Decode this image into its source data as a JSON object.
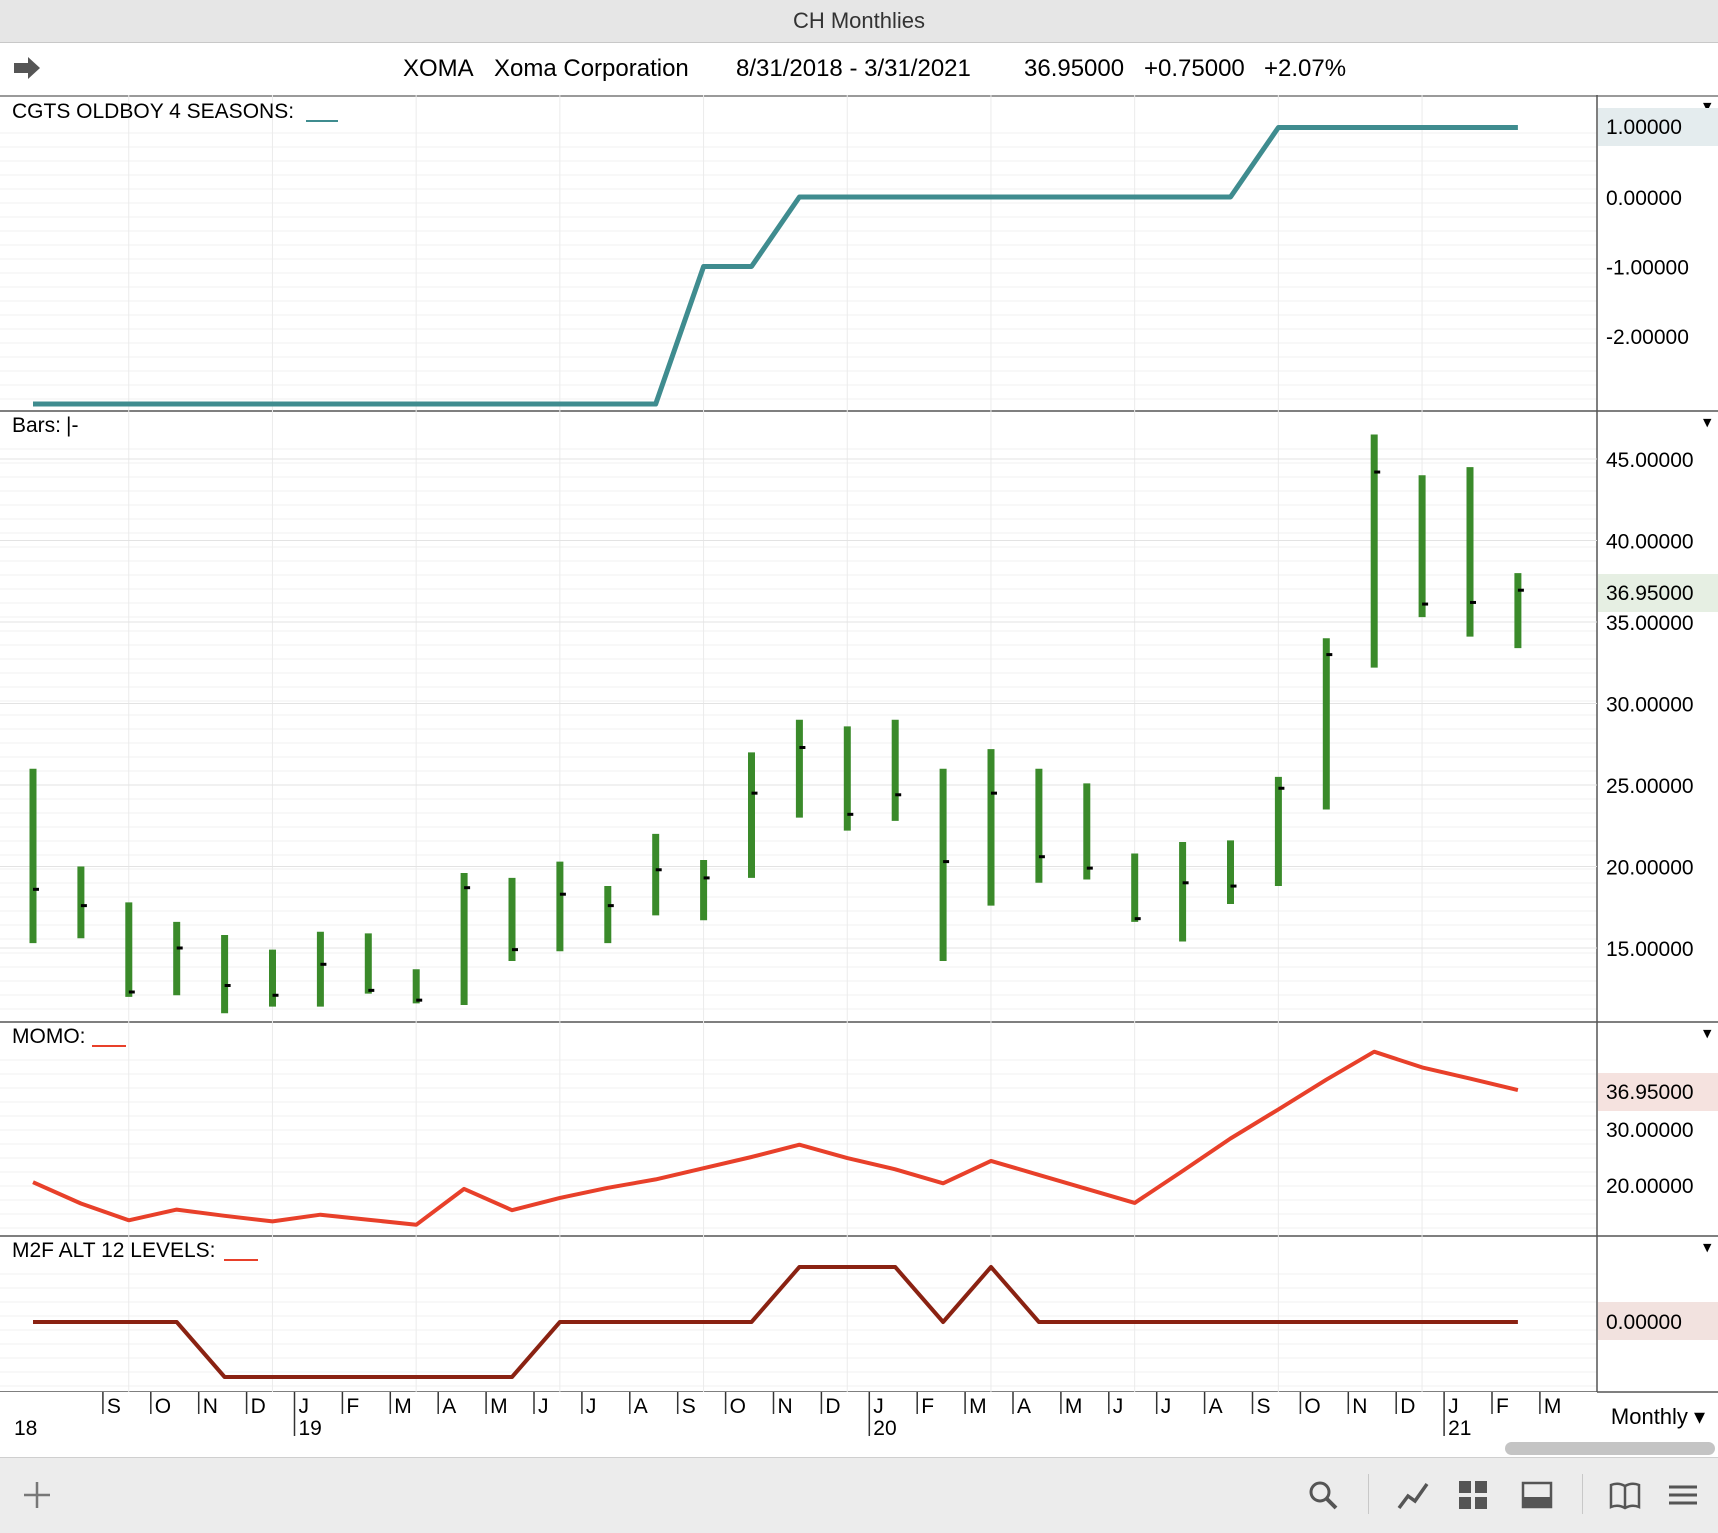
{
  "window_title": "CH Monthlies",
  "header": {
    "symbol": "XOMA",
    "company": "Xoma Corporation",
    "date_range": "8/31/2018 - 3/31/2021",
    "last": "36.95000",
    "change": "+0.75000",
    "change_pct": "+2.07%"
  },
  "panels": {
    "seasons": {
      "label": "CGTS OLDBOY 4 SEASONS:",
      "line_color": "#3f8c8f",
      "price_tag": "1.00000",
      "tag_color": "#3f8c8f"
    },
    "bars": {
      "label": "Bars:",
      "bar_color": "#3a8a2a",
      "price_tag": "36.95000",
      "tag_color": "#2f6b22"
    },
    "momo": {
      "label": "MOMO:",
      "line_color": "#e8402a",
      "price_tag": "36.95000",
      "tag_color": "#c0392b"
    },
    "m2f": {
      "label": "M2F ALT 12 LEVELS:",
      "line_color": "#8a2212",
      "price_tag": "0.00000",
      "tag_color": "#8a2212"
    }
  },
  "timeframe": "Monthly",
  "footer_icons": [
    "plus-icon",
    "search-icon",
    "line-chart-icon",
    "grid-icon",
    "panel-icon",
    "book-icon",
    "menu-icon"
  ],
  "chart_data": {
    "type": "line",
    "x": [
      "2018-08",
      "2018-09",
      "2018-10",
      "2018-11",
      "2018-12",
      "2019-01",
      "2019-02",
      "2019-03",
      "2019-04",
      "2019-05",
      "2019-06",
      "2019-07",
      "2019-08",
      "2019-09",
      "2019-10",
      "2019-11",
      "2019-12",
      "2020-01",
      "2020-02",
      "2020-03",
      "2020-04",
      "2020-05",
      "2020-06",
      "2020-07",
      "2020-08",
      "2020-09",
      "2020-10",
      "2020-11",
      "2020-12",
      "2021-01",
      "2021-02",
      "2021-03"
    ],
    "month_letters": [
      "",
      "S",
      "O",
      "N",
      "D",
      "J",
      "F",
      "M",
      "A",
      "M",
      "J",
      "J",
      "A",
      "S",
      "O",
      "N",
      "D",
      "J",
      "F",
      "M",
      "A",
      "M",
      "J",
      "J",
      "A",
      "S",
      "O",
      "N",
      "D",
      "J",
      "F",
      "M"
    ],
    "year_labels": [
      {
        "index": 0,
        "label": "18"
      },
      {
        "index": 5,
        "label": "19"
      },
      {
        "index": 17,
        "label": "20"
      },
      {
        "index": 29,
        "label": "21"
      }
    ],
    "series": [
      {
        "panel": "seasons",
        "values": [
          -3,
          -3,
          -3,
          -3,
          -3,
          -3,
          -3,
          -3,
          -3,
          -3,
          -3,
          -3,
          -3,
          -3,
          -1,
          -1,
          0,
          0,
          0,
          0,
          0,
          0,
          0,
          0,
          0,
          0,
          1,
          1,
          1,
          1,
          1,
          1
        ]
      },
      {
        "panel": "bars",
        "type": "ohlc",
        "high": [
          26.0,
          20.0,
          17.8,
          16.6,
          15.8,
          14.9,
          16.0,
          15.9,
          13.7,
          19.6,
          19.3,
          20.3,
          18.8,
          22.0,
          20.4,
          27.0,
          29.0,
          28.6,
          29.0,
          26.0,
          27.2,
          26.0,
          25.1,
          20.8,
          21.5,
          21.6,
          25.5,
          34.0,
          46.5,
          44.0,
          44.5,
          38.0
        ],
        "low": [
          15.3,
          15.6,
          12.0,
          12.1,
          11.0,
          11.4,
          11.4,
          12.2,
          11.6,
          11.5,
          14.2,
          14.8,
          15.3,
          17.0,
          16.7,
          19.3,
          23.0,
          22.2,
          22.8,
          14.2,
          17.6,
          19.0,
          19.2,
          16.6,
          15.4,
          17.7,
          18.8,
          23.5,
          32.2,
          35.3,
          34.1,
          33.4
        ],
        "close": [
          18.6,
          17.6,
          12.3,
          15.0,
          12.7,
          12.1,
          14.0,
          12.4,
          11.8,
          18.7,
          14.9,
          18.3,
          17.6,
          19.8,
          19.3,
          24.5,
          27.3,
          23.2,
          24.4,
          20.3,
          24.5,
          20.6,
          19.9,
          16.8,
          19.0,
          18.8,
          24.8,
          33.0,
          44.2,
          36.1,
          36.2,
          36.95
        ],
        "yticks": [
          15,
          20,
          25,
          30,
          35,
          40,
          45
        ]
      },
      {
        "panel": "momo",
        "values": [
          20.5,
          16.7,
          13.7,
          15.6,
          14.5,
          13.5,
          14.7,
          13.8,
          12.9,
          19.3,
          15.5,
          17.7,
          19.5,
          21.0,
          23.0,
          25.0,
          27.2,
          24.8,
          22.8,
          20.3,
          24.3,
          21.8,
          19.3,
          16.8,
          22.5,
          28.3,
          33.5,
          38.8,
          43.8,
          41.0,
          39.0,
          36.95
        ],
        "yticks": [
          20,
          30
        ],
        "ytick_labels": [
          "20.00000",
          "30.00000"
        ]
      },
      {
        "panel": "m2f",
        "values": [
          0,
          0,
          0,
          0,
          -1,
          -1,
          -1,
          -1,
          -1,
          -1,
          -1,
          0,
          0,
          0,
          0,
          0,
          1,
          1,
          1,
          0,
          1,
          0,
          0,
          0,
          0,
          0,
          0,
          0,
          0,
          0,
          0,
          0
        ]
      }
    ],
    "seasons_ytick_labels": [
      "0.00000",
      "-1.00000",
      "-2.00000"
    ],
    "bars_ytick_labels": [
      "15.00000",
      "20.00000",
      "25.00000",
      "30.00000",
      "35.00000",
      "40.00000",
      "45.00000"
    ],
    "xlabel": "",
    "ylabel": ""
  }
}
